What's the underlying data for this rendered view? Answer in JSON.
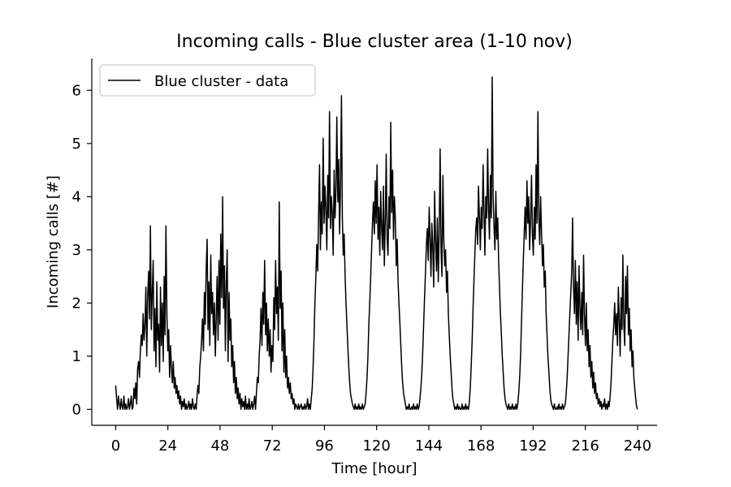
{
  "chart_data": {
    "type": "line",
    "title": "Incoming calls - Blue cluster area (1-10 nov)",
    "xlabel": "Time [hour]",
    "ylabel": "Incoming calls [#]",
    "xlim": [
      -11,
      249
    ],
    "ylim": [
      -0.3,
      6.6
    ],
    "x_ticks": [
      0,
      24,
      48,
      72,
      96,
      120,
      144,
      168,
      192,
      216,
      240
    ],
    "y_ticks": [
      0,
      1,
      2,
      3,
      4,
      5,
      6
    ],
    "grid": false,
    "legend": {
      "position": "top-left",
      "entries": [
        "Blue cluster - data"
      ]
    },
    "series": [
      {
        "name": "Blue cluster - data",
        "color": "#000000",
        "sampling": "every 20 minutes (3 points per hour) from hour 0 to hour 240",
        "x_start": 0,
        "x_step": 0.3333333,
        "day_peaks": [
          {
            "day": 1,
            "peak_hour": 12.5,
            "max": 3.45
          },
          {
            "day": 2,
            "peak_hour": 41.0,
            "max": 4.0
          },
          {
            "day": 3,
            "peak_hour": 67.0,
            "max": 3.9
          },
          {
            "day": 4,
            "peak_hour": 89.5,
            "max": 5.9
          },
          {
            "day": 5,
            "peak_hour": 114.0,
            "max": 5.4
          },
          {
            "day": 6,
            "peak_hour": 137.5,
            "max": 4.9
          },
          {
            "day": 7,
            "peak_hour": 160.0,
            "max": 6.25
          },
          {
            "day": 8,
            "peak_hour": 184.0,
            "max": 5.6
          },
          {
            "day": 9,
            "peak_hour": 203.0,
            "max": 3.6
          },
          {
            "day": 10,
            "peak_hour": 234.0,
            "max": 2.9
          }
        ],
        "values": [
          0.45,
          0.2,
          0.0,
          0.25,
          0.1,
          0.0,
          0.2,
          0.05,
          0.0,
          0.25,
          0.0,
          0.1,
          0.0,
          0.05,
          0.2,
          0.0,
          0.1,
          0.25,
          0.0,
          0.05,
          0.4,
          0.2,
          0.5,
          0.1,
          0.75,
          0.9,
          0.6,
          1.1,
          1.4,
          1.2,
          1.8,
          1.3,
          1.6,
          2.3,
          1.0,
          2.1,
          2.6,
          1.7,
          3.45,
          1.5,
          2.2,
          2.8,
          1.1,
          1.9,
          0.8,
          2.4,
          1.3,
          1.6,
          0.7,
          2.3,
          1.2,
          2.0,
          0.9,
          2.5,
          1.4,
          3.45,
          1.8,
          1.1,
          1.5,
          0.6,
          1.2,
          0.8,
          0.5,
          0.9,
          0.4,
          0.6,
          0.3,
          0.45,
          0.2,
          0.35,
          0.1,
          0.25,
          0.0,
          0.15,
          0.05,
          0.2,
          0.0,
          0.1,
          0.0,
          0.05,
          0.15,
          0.0,
          0.1,
          0.0,
          0.2,
          0.05,
          0.0,
          0.1,
          0.0,
          0.25,
          0.45,
          0.3,
          0.8,
          1.0,
          1.3,
          1.7,
          1.1,
          2.2,
          1.6,
          2.6,
          3.2,
          1.5,
          2.4,
          1.2,
          2.9,
          1.8,
          2.2,
          1.4,
          2.0,
          1.0,
          1.7,
          2.5,
          1.3,
          2.8,
          1.6,
          3.3,
          2.1,
          4.0,
          1.9,
          2.7,
          1.1,
          2.4,
          3.0,
          0.9,
          2.2,
          1.3,
          1.7,
          0.8,
          1.2,
          0.5,
          0.9,
          0.3,
          0.6,
          0.2,
          0.4,
          0.1,
          0.3,
          0.0,
          0.2,
          0.05,
          0.15,
          0.0,
          0.25,
          0.0,
          0.1,
          0.0,
          0.2,
          0.0,
          0.05,
          0.15,
          0.0,
          0.1,
          0.25,
          0.0,
          0.3,
          0.6,
          0.5,
          1.0,
          1.3,
          1.9,
          1.2,
          2.2,
          1.6,
          2.8,
          1.4,
          2.0,
          1.1,
          1.7,
          1.0,
          1.5,
          0.7,
          1.2,
          0.9,
          2.1,
          1.5,
          2.8,
          1.8,
          2.3,
          1.3,
          3.9,
          1.9,
          2.6,
          1.1,
          2.0,
          0.7,
          1.5,
          0.6,
          1.0,
          0.4,
          0.6,
          0.3,
          0.5,
          0.2,
          0.3,
          0.1,
          0.2,
          0.0,
          0.1,
          0.05,
          0.0,
          0.1,
          0.0,
          0.05,
          0.1,
          0.0,
          0.05,
          0.0,
          0.1,
          0.0,
          0.05,
          0.2,
          0.0,
          0.1,
          0.0,
          0.2,
          0.4,
          0.8,
          1.3,
          2.0,
          2.5,
          3.1,
          2.6,
          3.6,
          4.6,
          3.0,
          3.9,
          3.3,
          5.1,
          3.5,
          4.2,
          3.8,
          3.0,
          4.4,
          3.6,
          5.6,
          3.4,
          4.0,
          3.7,
          2.9,
          4.5,
          3.6,
          4.1,
          5.5,
          3.9,
          4.7,
          3.3,
          4.2,
          5.9,
          3.6,
          2.9,
          3.3,
          2.5,
          2.0,
          1.6,
          1.2,
          0.8,
          0.5,
          0.3,
          0.2,
          0.1,
          0.05,
          0.0,
          0.1,
          0.0,
          0.05,
          0.0,
          0.1,
          0.0,
          0.05,
          0.0,
          0.1,
          0.0,
          0.05,
          0.1,
          0.3,
          0.6,
          1.0,
          1.6,
          2.0,
          2.5,
          3.0,
          3.5,
          3.9,
          3.3,
          4.3,
          3.5,
          4.6,
          3.2,
          3.8,
          2.9,
          4.1,
          3.4,
          3.0,
          4.2,
          2.7,
          3.6,
          4.8,
          3.2,
          2.9,
          4.0,
          3.4,
          5.4,
          3.7,
          4.5,
          3.2,
          4.0,
          3.6,
          2.7,
          3.2,
          2.4,
          2.0,
          1.6,
          1.2,
          0.8,
          0.5,
          0.3,
          0.2,
          0.1,
          0.0,
          0.05,
          0.0,
          0.1,
          0.0,
          0.0,
          0.05,
          0.0,
          0.1,
          0.0,
          0.05,
          0.0,
          0.1,
          0.0,
          0.05,
          0.2,
          0.4,
          0.7,
          1.1,
          1.6,
          2.1,
          2.6,
          3.1,
          3.4,
          2.8,
          3.8,
          3.2,
          2.5,
          3.5,
          3.0,
          2.3,
          4.1,
          3.2,
          2.6,
          3.6,
          2.4,
          3.3,
          4.9,
          3.0,
          2.5,
          4.4,
          3.2,
          2.7,
          3.0,
          2.2,
          2.6,
          1.8,
          1.4,
          1.0,
          0.7,
          0.4,
          0.2,
          0.1,
          0.0,
          0.05,
          0.0,
          0.1,
          0.0,
          0.05,
          0.0,
          0.0,
          0.1,
          0.0,
          0.05,
          0.0,
          0.1,
          0.0,
          0.05,
          0.0,
          0.15,
          0.4,
          0.8,
          1.3,
          1.9,
          2.4,
          2.9,
          3.4,
          3.6,
          3.1,
          4.2,
          3.6,
          3.0,
          3.8,
          3.4,
          4.6,
          3.7,
          2.9,
          4.0,
          3.6,
          4.9,
          3.8,
          3.2,
          4.4,
          3.6,
          6.25,
          4.0,
          3.4,
          3.0,
          4.1,
          3.2,
          3.6,
          2.8,
          2.3,
          1.8,
          1.4,
          1.0,
          0.7,
          0.4,
          0.2,
          0.1,
          0.05,
          0.0,
          0.1,
          0.0,
          0.05,
          0.0,
          0.1,
          0.0,
          0.05,
          0.0,
          0.1,
          0.0,
          0.1,
          0.3,
          0.6,
          1.0,
          1.6,
          2.2,
          2.8,
          3.3,
          3.8,
          3.2,
          4.3,
          3.5,
          4.0,
          3.0,
          3.6,
          4.4,
          3.3,
          2.9,
          3.8,
          3.2,
          4.6,
          3.5,
          5.6,
          3.6,
          3.1,
          4.0,
          3.3,
          2.7,
          3.1,
          2.3,
          2.6,
          1.8,
          1.4,
          1.0,
          0.7,
          0.4,
          0.2,
          0.1,
          0.05,
          0.0,
          0.1,
          0.0,
          0.0,
          0.05,
          0.0,
          0.1,
          0.0,
          0.05,
          0.0,
          0.1,
          0.0,
          0.05,
          0.1,
          0.3,
          0.6,
          1.0,
          1.4,
          1.8,
          2.2,
          2.6,
          3.6,
          2.3,
          1.8,
          2.8,
          1.6,
          2.4,
          1.3,
          2.7,
          1.9,
          1.5,
          2.2,
          1.4,
          2.9,
          1.8,
          1.2,
          2.0,
          1.1,
          1.5,
          0.8,
          1.2,
          0.6,
          0.9,
          0.4,
          0.7,
          0.3,
          0.5,
          0.2,
          0.3,
          0.1,
          0.2,
          0.05,
          0.15,
          0.0,
          0.1,
          0.05,
          0.2,
          0.0,
          0.1,
          0.0,
          0.15,
          0.05,
          0.25,
          0.5,
          0.9,
          1.3,
          1.6,
          2.0,
          1.4,
          1.8,
          1.2,
          2.3,
          1.7,
          1.0,
          2.1,
          1.5,
          2.9,
          1.6,
          1.2,
          2.5,
          1.8,
          2.7,
          1.4,
          1.9,
          1.1,
          1.5,
          0.8,
          1.1,
          0.6,
          0.4,
          0.2,
          0.05,
          0.0
        ]
      }
    ]
  }
}
